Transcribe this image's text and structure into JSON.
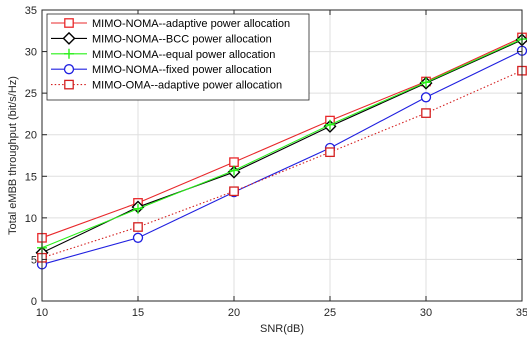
{
  "chart_data": {
    "type": "line",
    "title": "",
    "xlabel": "SNR(dB)",
    "ylabel": "Total eMBB throughput (bit/s/Hz)",
    "xlim": [
      10,
      35
    ],
    "ylim": [
      0,
      35
    ],
    "xticks": [
      10,
      15,
      20,
      25,
      30,
      35
    ],
    "yticks": [
      0,
      5,
      10,
      15,
      20,
      25,
      30,
      35
    ],
    "grid": true,
    "legend_position": "top-left",
    "x": [
      10,
      15,
      20,
      25,
      30,
      35
    ],
    "series": [
      {
        "name": "MIMO-NOMA--adaptive power allocation",
        "values": [
          7.6,
          11.8,
          16.7,
          21.7,
          26.4,
          31.7
        ],
        "color": "#e8282b",
        "marker": "square",
        "line": "solid"
      },
      {
        "name": "MIMO-NOMA--BCC power allocation",
        "values": [
          5.8,
          11.3,
          15.5,
          21.0,
          26.2,
          31.4
        ],
        "color": "#000000",
        "marker": "diamond",
        "line": "solid"
      },
      {
        "name": "MIMO-NOMA--equal power allocation",
        "values": [
          6.4,
          11.1,
          15.7,
          21.2,
          26.3,
          31.5
        ],
        "color": "#29f019",
        "marker": "plus",
        "line": "solid"
      },
      {
        "name": "MIMO-NOMA--fixed power allocation",
        "values": [
          4.4,
          7.6,
          13.1,
          18.4,
          24.5,
          30.1
        ],
        "color": "#2020e0",
        "marker": "circle",
        "line": "solid"
      },
      {
        "name": "MIMO-OMA--adaptive power allocation",
        "values": [
          5.2,
          8.9,
          13.2,
          17.9,
          22.6,
          27.7
        ],
        "color": "#d42020",
        "marker": "square",
        "line": "dotted"
      }
    ]
  }
}
